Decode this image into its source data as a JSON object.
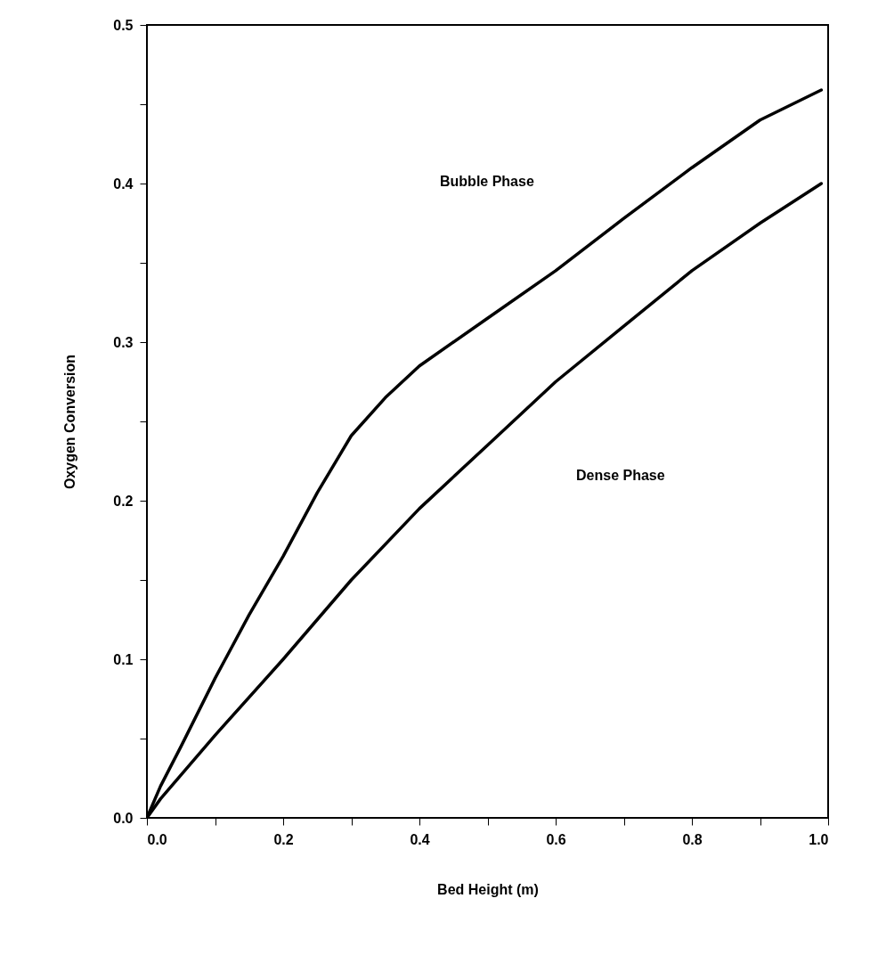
{
  "chart_data": {
    "type": "line",
    "xlabel": "Bed Height (m)",
    "ylabel": "Oxygen Conversion",
    "xlim": [
      0,
      1
    ],
    "ylim": [
      0,
      0.5
    ],
    "xticks": [
      {
        "value": 0,
        "label": "0.0"
      },
      {
        "value": 0.1,
        "label": null
      },
      0.2,
      {
        "value": 0.3,
        "label": null
      },
      0.4,
      {
        "value": 0.5,
        "label": null
      },
      0.6,
      {
        "value": 0.7,
        "label": null
      },
      0.8,
      {
        "value": 0.9,
        "label": null
      },
      {
        "value": 1,
        "label": "1.0"
      }
    ],
    "yticks": [
      {
        "value": 0,
        "label": "0.0"
      },
      {
        "value": 0.05,
        "label": null
      },
      0.1,
      {
        "value": 0.15,
        "label": null
      },
      0.2,
      {
        "value": 0.25,
        "label": null
      },
      0.3,
      {
        "value": 0.35,
        "label": null
      },
      0.4,
      {
        "value": 0.45,
        "label": null
      },
      0.5
    ],
    "grid": false,
    "marker": "none",
    "line_style": "solid",
    "series": [
      {
        "color": "#000000",
        "x": [
          0,
          0.02,
          0.05,
          0.1,
          0.15,
          0.2,
          0.25,
          0.3,
          0.35,
          0.4,
          0.5,
          0.6,
          0.7,
          0.8,
          0.9,
          0.99
        ],
        "values": [
          0,
          0.02,
          0.045,
          0.088,
          0.128,
          0.165,
          0.205,
          0.241,
          0.265,
          0.285,
          0.315,
          0.345,
          0.378,
          0.41,
          0.44,
          0.459
        ]
      },
      {
        "color": "#000000",
        "x": [
          0,
          0.02,
          0.05,
          0.1,
          0.2,
          0.3,
          0.4,
          0.5,
          0.6,
          0.7,
          0.8,
          0.9,
          0.99
        ],
        "values": [
          0,
          0.012,
          0.027,
          0.052,
          0.1,
          0.15,
          0.195,
          0.235,
          0.275,
          0.31,
          0.345,
          0.375,
          0.4
        ]
      }
    ],
    "annotations": [
      "Bubble Phase",
      "Dense Phase"
    ]
  }
}
